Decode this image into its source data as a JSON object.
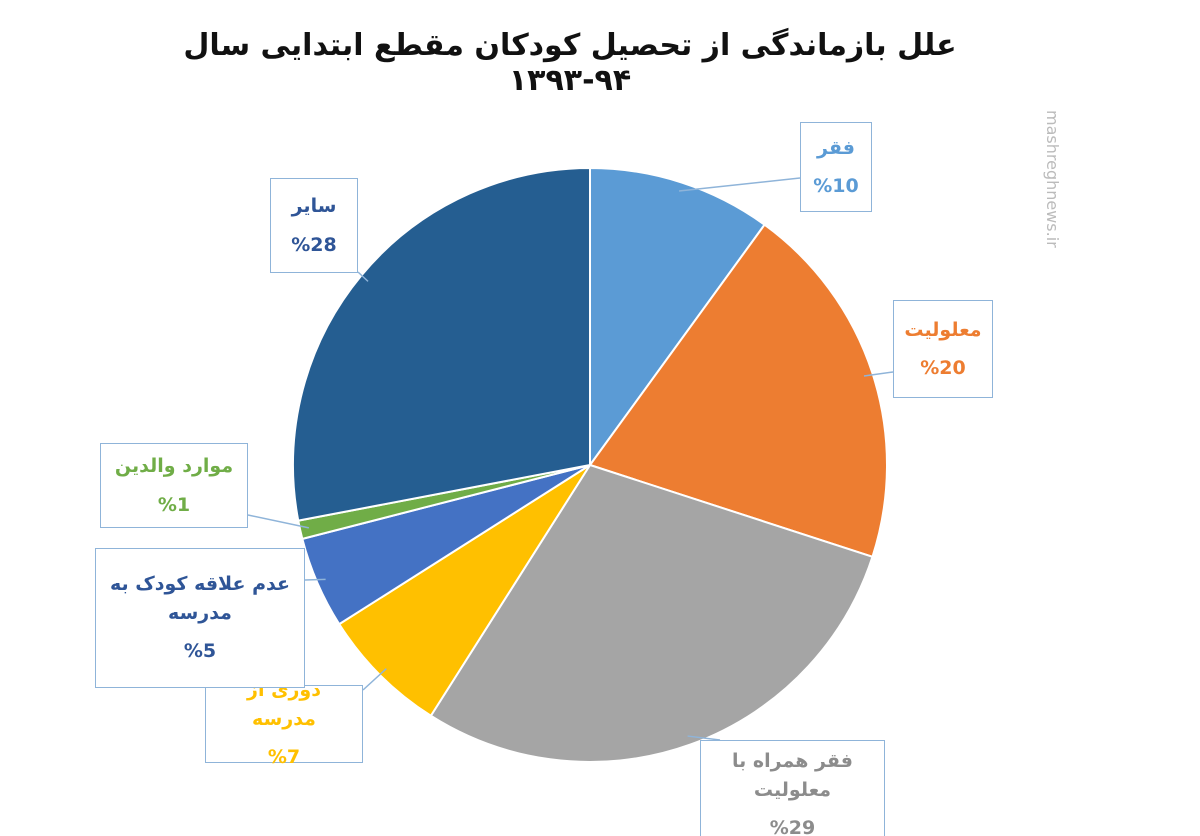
{
  "chart_data": {
    "type": "pie",
    "title": "علل بازماندگی از تحصیل کودکان مقطع ابتدایی سال ۹۴-۱۳۹۳",
    "watermark": "mashreghnews.ir",
    "categories": [
      "فقر",
      "معلولیت",
      "فقر همراه با معلولیت",
      "دوری از مدرسه",
      "عدم علاقه کودک به مدرسه",
      "موارد والدین",
      "سایر"
    ],
    "values": [
      10,
      20,
      29,
      7,
      5,
      1,
      28
    ],
    "value_labels": [
      "%10",
      "%20",
      "%29",
      "%7",
      "%5",
      "%1",
      "%28"
    ],
    "colors": [
      "#5b9bd5",
      "#ed7d31",
      "#a5a5a5",
      "#ffc000",
      "#4472c4",
      "#70ad47",
      "#255e91"
    ]
  }
}
